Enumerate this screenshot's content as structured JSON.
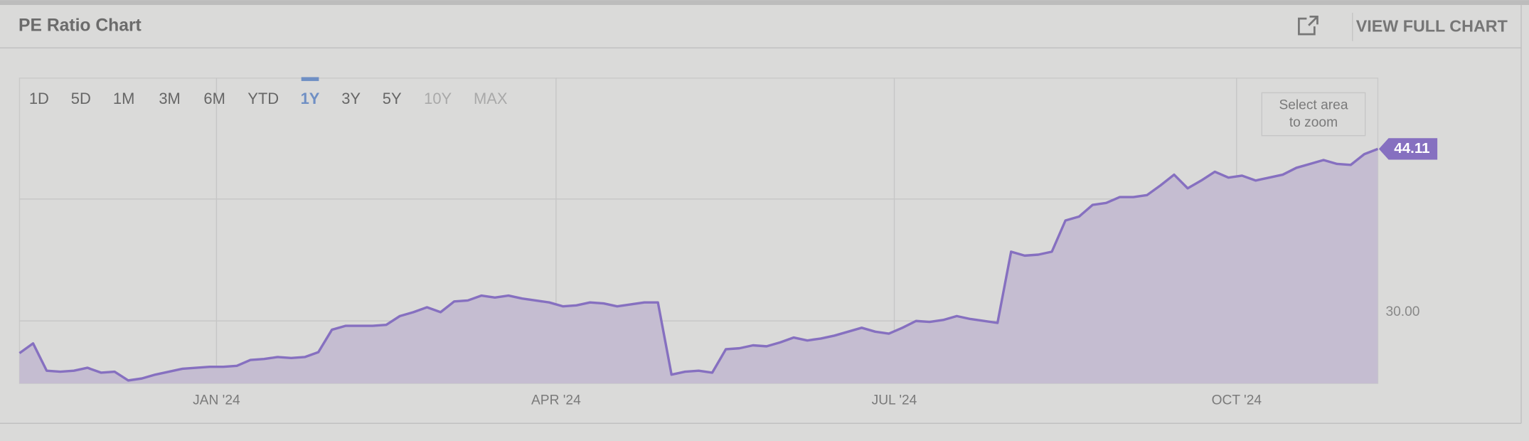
{
  "header": {
    "title": "PE Ratio Chart",
    "action": "VIEW FULL CHART"
  },
  "range_buttons": [
    "1D",
    "5D",
    "1M",
    "3M",
    "6M",
    "YTD",
    "1Y",
    "3Y",
    "5Y",
    "10Y",
    "MAX"
  ],
  "selected_range": 6,
  "disabled_ranges": [
    9,
    10
  ],
  "zoom_hint": [
    "Select area",
    "to zoom"
  ],
  "chart_data": {
    "type": "area",
    "series": [
      {
        "color": "#8670c0",
        "values": [
          27.36,
          28.16,
          25.92,
          25.84,
          25.92,
          26.16,
          25.76,
          25.84,
          25.12,
          25.28,
          25.6,
          25.84,
          26.08,
          26.16,
          26.24,
          26.24,
          26.32,
          26.8,
          26.88,
          27.04,
          26.96,
          27.04,
          27.44,
          29.28,
          29.6,
          29.6,
          29.6,
          29.68,
          30.4,
          30.72,
          31.12,
          30.72,
          31.6,
          31.68,
          32.08,
          31.92,
          32.08,
          31.84,
          31.68,
          31.52,
          31.2,
          31.28,
          31.52,
          31.44,
          31.2,
          31.36,
          31.52,
          31.52,
          25.6,
          25.84,
          25.92,
          25.76,
          27.68,
          27.76,
          28,
          27.92,
          28.24,
          28.64,
          28.4,
          28.56,
          28.8,
          29.12,
          29.44,
          29.12,
          28.96,
          29.44,
          30,
          29.92,
          30.08,
          30.4,
          30.16,
          30,
          29.84,
          35.68,
          35.36,
          35.44,
          35.68,
          38.24,
          38.56,
          39.52,
          39.68,
          40.16,
          40.16,
          40.32,
          41.12,
          42,
          40.88,
          41.52,
          42.24,
          41.76,
          41.92,
          41.52,
          41.76,
          42,
          42.56,
          42.88,
          43.2,
          42.88,
          42.8,
          43.68,
          44.11
        ]
      }
    ],
    "area_color": "#c5bdd1",
    "xlim": [
      0,
      100
    ],
    "xticks": [
      {
        "value": 14.5,
        "label": "JAN '24"
      },
      {
        "value": 39.5,
        "label": "APR '24"
      },
      {
        "value": 64.4,
        "label": "JUL '24"
      },
      {
        "value": 89.6,
        "label": "OCT '24"
      }
    ],
    "ylim": [
      24.88,
      49.92
    ],
    "yticks": [
      {
        "value": 30,
        "label": "30.00"
      },
      {
        "value": 40,
        "label": null
      }
    ],
    "grid": true
  }
}
